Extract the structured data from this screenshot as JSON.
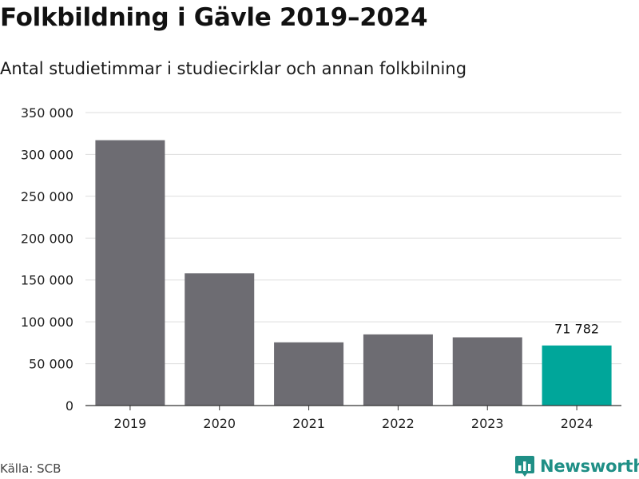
{
  "chart_data": {
    "type": "bar",
    "title": "Folkbildning i Gävle 2019–2024",
    "subtitle": "Antal studietimmar i studiecirklar och annan folkbilning",
    "categories": [
      "2019",
      "2020",
      "2021",
      "2022",
      "2023",
      "2024"
    ],
    "values": [
      317000,
      158000,
      75500,
      85000,
      81500,
      71782
    ],
    "ylim": [
      0,
      350000
    ],
    "yticks": [
      0,
      50000,
      100000,
      150000,
      200000,
      250000,
      300000,
      350000
    ],
    "ytick_labels": [
      "0",
      "50 000",
      "100 000",
      "150 000",
      "200 000",
      "250 000",
      "300 000",
      "350 000"
    ],
    "data_labels": [
      {
        "category": "2024",
        "text": "71 782"
      }
    ],
    "grid": true,
    "colors": {
      "bar": "#6d6c72",
      "highlight": "#00a69a",
      "grid": "#dddddd",
      "axis": "#333333"
    },
    "highlight_category": "2024"
  },
  "footer": {
    "source": "Källa: SCB",
    "brand": "Newsworthy",
    "brand_icon": "bar-chart-speech-icon"
  }
}
